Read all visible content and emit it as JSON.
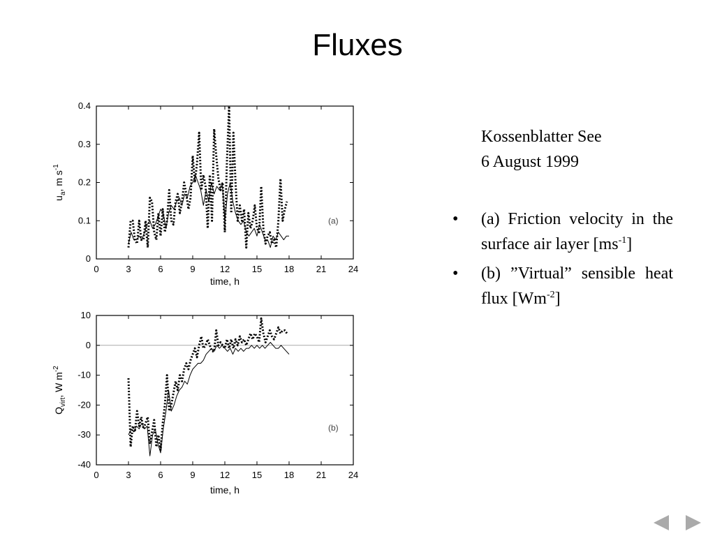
{
  "slide": {
    "title": "Fluxes"
  },
  "info": {
    "location": "Kossenblatter See",
    "date": "6 August 1999",
    "bullets": [
      {
        "marker": "•",
        "text": "(a) Friction velocity in the surface air layer [ms",
        "sup": "-1",
        "tail": "]"
      },
      {
        "marker": "•",
        "text": "(b) ”Virtual” sensible heat flux [Wm",
        "sup": "-2",
        "tail": "]"
      }
    ]
  },
  "nav": {
    "prev_icon": "triangle-left-icon",
    "next_icon": "triangle-right-icon",
    "color": "#aaaaaa"
  },
  "chart_data": [
    {
      "type": "line",
      "panel_label": "(a)",
      "xlabel": "time, h",
      "ylabel_main": "u",
      "ylabel_sub": "a",
      "ylabel_rest": ", m s",
      "ylabel_sup": "-1",
      "xlim": [
        0,
        24
      ],
      "ylim": [
        0,
        0.4
      ],
      "xticks": [
        0,
        3,
        6,
        9,
        12,
        15,
        18,
        21,
        24
      ],
      "yticks": [
        0,
        0.1,
        0.2,
        0.3,
        0.4
      ],
      "ytick_labels": [
        "0",
        "0.1",
        "0.2",
        "0.3",
        "0.4"
      ],
      "series": [
        {
          "style": "solid",
          "x": [
            3.0,
            3.25,
            3.5,
            3.75,
            4.0,
            4.25,
            4.5,
            4.75,
            5.0,
            5.25,
            5.5,
            5.75,
            6.0,
            6.25,
            6.5,
            6.75,
            7.0,
            7.25,
            7.5,
            7.75,
            8.0,
            8.25,
            8.5,
            8.75,
            9.0,
            9.25,
            9.5,
            9.75,
            10.0,
            10.25,
            10.5,
            10.75,
            11.0,
            11.25,
            11.5,
            11.75,
            12.0,
            12.25,
            12.5,
            12.75,
            13.0,
            13.25,
            13.5,
            13.75,
            14.0,
            14.25,
            14.5,
            14.75,
            15.0,
            15.25,
            15.5,
            15.75,
            16.0,
            16.25,
            16.5,
            16.75,
            17.0,
            17.25,
            17.5,
            17.75,
            18.0
          ],
          "y": [
            0.04,
            0.07,
            0.05,
            0.05,
            0.06,
            0.05,
            0.07,
            0.09,
            0.1,
            0.08,
            0.09,
            0.11,
            0.13,
            0.12,
            0.08,
            0.12,
            0.14,
            0.13,
            0.15,
            0.16,
            0.14,
            0.17,
            0.16,
            0.19,
            0.2,
            0.22,
            0.2,
            0.18,
            0.14,
            0.18,
            0.15,
            0.2,
            0.17,
            0.19,
            0.18,
            0.2,
            0.1,
            0.17,
            0.2,
            0.15,
            0.12,
            0.1,
            0.09,
            0.1,
            0.07,
            0.06,
            0.07,
            0.08,
            0.06,
            0.09,
            0.07,
            0.05,
            0.05,
            0.03,
            0.06,
            0.05,
            0.07,
            0.06,
            0.05,
            0.06,
            0.06
          ]
        },
        {
          "style": "dotted",
          "x": [
            3.0,
            3.2,
            3.4,
            3.6,
            3.8,
            4.0,
            4.2,
            4.4,
            4.6,
            4.8,
            5.0,
            5.2,
            5.4,
            5.6,
            5.8,
            6.0,
            6.2,
            6.4,
            6.6,
            6.8,
            7.0,
            7.2,
            7.4,
            7.6,
            7.8,
            8.0,
            8.2,
            8.4,
            8.6,
            8.8,
            9.0,
            9.2,
            9.4,
            9.6,
            9.8,
            10.0,
            10.2,
            10.4,
            10.6,
            10.8,
            11.0,
            11.2,
            11.4,
            11.6,
            11.8,
            12.0,
            12.2,
            12.4,
            12.6,
            12.8,
            13.0,
            13.2,
            13.4,
            13.6,
            13.8,
            14.0,
            14.2,
            14.4,
            14.6,
            14.8,
            15.0,
            15.2,
            15.4,
            15.6,
            15.8,
            16.0,
            16.2,
            16.4,
            16.6,
            16.8,
            17.0,
            17.2,
            17.4,
            17.6,
            17.8
          ],
          "y": [
            0.03,
            0.1,
            0.1,
            0.05,
            0.04,
            0.1,
            0.05,
            0.05,
            0.1,
            0.03,
            0.16,
            0.15,
            0.07,
            0.05,
            0.12,
            0.06,
            0.13,
            0.07,
            0.1,
            0.18,
            0.1,
            0.09,
            0.15,
            0.17,
            0.12,
            0.15,
            0.2,
            0.17,
            0.13,
            0.16,
            0.27,
            0.2,
            0.25,
            0.33,
            0.18,
            0.22,
            0.19,
            0.08,
            0.22,
            0.1,
            0.34,
            0.27,
            0.21,
            0.18,
            0.2,
            0.07,
            0.26,
            0.4,
            0.12,
            0.33,
            0.2,
            0.1,
            0.14,
            0.1,
            0.13,
            0.03,
            0.12,
            0.08,
            0.1,
            0.14,
            0.08,
            0.07,
            0.19,
            0.08,
            0.04,
            0.06,
            0.07,
            0.04,
            0.05,
            0.03,
            0.1,
            0.21,
            0.1,
            0.13,
            0.15
          ]
        }
      ]
    },
    {
      "type": "line",
      "panel_label": "(b)",
      "xlabel": "time, h",
      "ylabel_main": "Q",
      "ylabel_sub": "virt",
      "ylabel_rest": ", W m",
      "ylabel_sup": "-2",
      "xlim": [
        0,
        24
      ],
      "ylim": [
        -40,
        10
      ],
      "xticks": [
        0,
        3,
        6,
        9,
        12,
        15,
        18,
        21,
        24
      ],
      "yticks": [
        -40,
        -30,
        -20,
        -10,
        0,
        10
      ],
      "ytick_labels": [
        "-40",
        "-30",
        "-20",
        "-10",
        "0",
        "10"
      ],
      "zero_line": true,
      "series": [
        {
          "style": "solid",
          "x": [
            3.0,
            3.25,
            3.5,
            3.75,
            4.0,
            4.25,
            4.5,
            4.75,
            5.0,
            5.25,
            5.5,
            5.75,
            6.0,
            6.25,
            6.5,
            6.75,
            7.0,
            7.25,
            7.5,
            7.75,
            8.0,
            8.25,
            8.5,
            8.75,
            9.0,
            9.25,
            9.5,
            9.75,
            10.0,
            10.25,
            10.5,
            10.75,
            11.0,
            11.25,
            11.5,
            11.75,
            12.0,
            12.25,
            12.5,
            12.75,
            13.0,
            13.25,
            13.5,
            13.75,
            14.0,
            14.25,
            14.5,
            14.75,
            15.0,
            15.25,
            15.5,
            15.75,
            16.0,
            16.25,
            16.5,
            16.75,
            17.0,
            17.25,
            17.5,
            17.75,
            18.0
          ],
          "y": [
            -30,
            -28,
            -29,
            -27,
            -28,
            -26,
            -28,
            -27,
            -37,
            -30,
            -28,
            -33,
            -36,
            -28,
            -22,
            -15,
            -22,
            -20,
            -17,
            -15,
            -14,
            -12,
            -13,
            -10,
            -8,
            -7,
            -6,
            -6,
            -5,
            -3,
            -2,
            -1,
            -2,
            0,
            -1,
            0,
            -1,
            -2,
            -1,
            -3,
            -1,
            -2,
            -1,
            -2,
            -1,
            -1,
            0,
            -1,
            0,
            -1,
            0,
            -1,
            0,
            1,
            0,
            -1,
            -1,
            0,
            -1,
            -2,
            -3
          ]
        },
        {
          "style": "dotted",
          "x": [
            3.0,
            3.2,
            3.4,
            3.6,
            3.8,
            4.0,
            4.2,
            4.4,
            4.6,
            4.8,
            5.0,
            5.2,
            5.4,
            5.6,
            5.8,
            6.0,
            6.2,
            6.4,
            6.6,
            6.8,
            7.0,
            7.2,
            7.4,
            7.6,
            7.8,
            8.0,
            8.2,
            8.4,
            8.6,
            8.8,
            9.0,
            9.2,
            9.4,
            9.6,
            9.8,
            10.0,
            10.2,
            10.4,
            10.6,
            10.8,
            11.0,
            11.2,
            11.4,
            11.6,
            11.8,
            12.0,
            12.2,
            12.4,
            12.6,
            12.8,
            13.0,
            13.2,
            13.4,
            13.6,
            13.8,
            14.0,
            14.2,
            14.4,
            14.6,
            14.8,
            15.0,
            15.2,
            15.4,
            15.6,
            15.8,
            16.0,
            16.2,
            16.4,
            16.6,
            16.8,
            17.0,
            17.2,
            17.4,
            17.6,
            17.8
          ],
          "y": [
            -11,
            -34,
            -27,
            -29,
            -22,
            -27,
            -24,
            -28,
            -26,
            -24,
            -33,
            -29,
            -25,
            -34,
            -30,
            -35,
            -26,
            -20,
            -10,
            -22,
            -20,
            -16,
            -12,
            -15,
            -10,
            -12,
            -8,
            -6,
            -8,
            -5,
            -3,
            -1,
            -4,
            0,
            3,
            -1,
            0,
            2,
            0,
            -2,
            -2,
            5,
            0,
            1,
            0,
            -1,
            2,
            -1,
            2,
            -1,
            2,
            0,
            3,
            1,
            2,
            0,
            2,
            4,
            2,
            4,
            3,
            1,
            9,
            4,
            1,
            3,
            5,
            3,
            2,
            4,
            6,
            4,
            5,
            5,
            4
          ]
        }
      ]
    }
  ]
}
